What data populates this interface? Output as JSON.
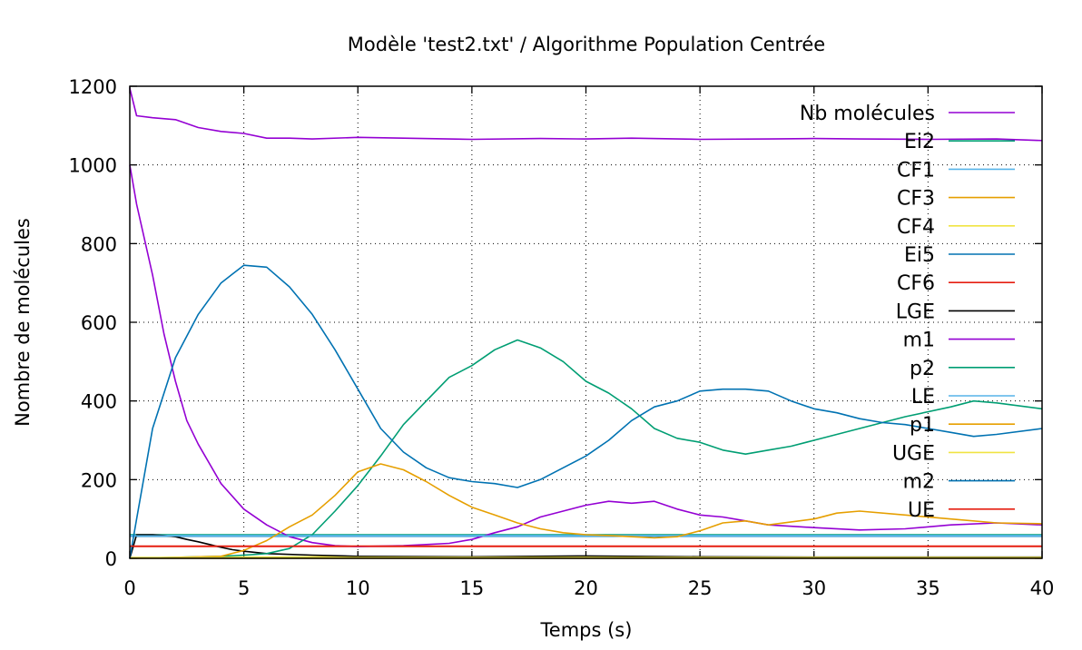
{
  "chart_data": {
    "type": "line",
    "title": "Modèle 'test2.txt' / Algorithme Population Centrée",
    "xlabel": "Temps (s)",
    "ylabel": "Nombre de molécules",
    "xlim": [
      0,
      40
    ],
    "ylim": [
      0,
      1200
    ],
    "xticks": [
      0,
      5,
      10,
      15,
      20,
      25,
      30,
      35,
      40
    ],
    "yticks": [
      0,
      200,
      400,
      600,
      800,
      1000,
      1200
    ],
    "grid": true,
    "legend_position": "top-right",
    "series": [
      {
        "name": "Nb molécules",
        "color": "#9400d3",
        "x": [
          0,
          0.3,
          1,
          2,
          3,
          4,
          5,
          6,
          7,
          8,
          10,
          12,
          15,
          18,
          20,
          22,
          25,
          28,
          30,
          32,
          35,
          38,
          40
        ],
        "y": [
          1195,
          1125,
          1120,
          1115,
          1095,
          1085,
          1080,
          1068,
          1068,
          1066,
          1070,
          1068,
          1065,
          1067,
          1066,
          1068,
          1065,
          1066,
          1067,
          1066,
          1065,
          1066,
          1062
        ]
      },
      {
        "name": "Ei2",
        "color": "#009e73",
        "x": [
          0,
          40
        ],
        "y": [
          60,
          60
        ]
      },
      {
        "name": "CF1",
        "color": "#56b4e9",
        "x": [
          0,
          40
        ],
        "y": [
          58,
          58
        ]
      },
      {
        "name": "CF3",
        "color": "#e69f00",
        "x": [
          0,
          40
        ],
        "y": [
          0,
          0
        ]
      },
      {
        "name": "CF4",
        "color": "#f0e442",
        "x": [
          0,
          4,
          10,
          15,
          20,
          25,
          30,
          35,
          40
        ],
        "y": [
          0,
          3,
          4,
          2,
          2,
          1,
          1,
          1,
          1
        ]
      },
      {
        "name": "Ei5",
        "color": "#0072b2",
        "x": [
          0,
          40
        ],
        "y": [
          56,
          56
        ]
      },
      {
        "name": "CF6",
        "color": "#e51e10",
        "x": [
          0,
          40
        ],
        "y": [
          30,
          30
        ]
      },
      {
        "name": "LGE",
        "color": "#000000",
        "x": [
          0,
          0.3,
          1,
          1.5,
          2,
          2.5,
          3,
          3.5,
          4,
          4.5,
          5,
          6,
          8,
          10,
          15,
          20,
          25,
          30,
          35,
          40
        ],
        "y": [
          0,
          60,
          60,
          58,
          55,
          48,
          42,
          35,
          28,
          22,
          18,
          12,
          8,
          5,
          4,
          6,
          4,
          3,
          3,
          3
        ]
      },
      {
        "name": "m1",
        "color": "#9400d3",
        "x": [
          0,
          0.3,
          1,
          1.5,
          2,
          2.5,
          3,
          4,
          5,
          6,
          7,
          8,
          9,
          10,
          12,
          14,
          15,
          16,
          17,
          18,
          19,
          20,
          21,
          22,
          23,
          24,
          25,
          26,
          27,
          28,
          30,
          32,
          34,
          36,
          38,
          40
        ],
        "y": [
          1000,
          900,
          720,
          570,
          450,
          350,
          290,
          190,
          125,
          85,
          55,
          40,
          32,
          30,
          32,
          38,
          48,
          65,
          80,
          105,
          120,
          135,
          145,
          140,
          145,
          125,
          110,
          105,
          95,
          85,
          78,
          72,
          75,
          85,
          90,
          85
        ]
      },
      {
        "name": "p2",
        "color": "#009e73",
        "x": [
          0,
          4,
          5,
          6,
          7,
          8,
          9,
          10,
          11,
          12,
          13,
          14,
          15,
          16,
          17,
          18,
          19,
          20,
          21,
          22,
          23,
          24,
          25,
          26,
          27,
          28,
          29,
          30,
          32,
          34,
          36,
          37,
          38,
          40
        ],
        "y": [
          0,
          5,
          8,
          12,
          25,
          60,
          120,
          185,
          260,
          340,
          400,
          460,
          490,
          530,
          555,
          535,
          500,
          450,
          420,
          380,
          330,
          305,
          295,
          275,
          265,
          275,
          285,
          300,
          330,
          360,
          385,
          400,
          395,
          380
        ]
      },
      {
        "name": "LE",
        "color": "#56b4e9",
        "x": [
          0,
          40
        ],
        "y": [
          57,
          57
        ]
      },
      {
        "name": "p1",
        "color": "#e69f00",
        "x": [
          0,
          4,
          5,
          6,
          7,
          8,
          9,
          10,
          11,
          12,
          13,
          14,
          15,
          16,
          17,
          18,
          19,
          20,
          21,
          22,
          23,
          24,
          25,
          26,
          27,
          28,
          30,
          31,
          32,
          34,
          36,
          38,
          40
        ],
        "y": [
          0,
          5,
          20,
          45,
          80,
          110,
          160,
          220,
          240,
          225,
          195,
          160,
          130,
          110,
          90,
          75,
          65,
          60,
          58,
          55,
          52,
          55,
          70,
          90,
          95,
          85,
          100,
          115,
          120,
          110,
          100,
          90,
          88
        ]
      },
      {
        "name": "UGE",
        "color": "#f0e442",
        "x": [
          0,
          40
        ],
        "y": [
          2,
          2
        ]
      },
      {
        "name": "m2",
        "color": "#0072b2",
        "x": [
          0,
          0.3,
          1,
          2,
          3,
          4,
          5,
          6,
          7,
          8,
          9,
          10,
          11,
          12,
          13,
          14,
          15,
          16,
          17,
          18,
          19,
          20,
          21,
          22,
          23,
          24,
          25,
          26,
          27,
          28,
          29,
          30,
          31,
          32,
          33,
          34,
          35,
          36,
          37,
          38,
          40
        ],
        "y": [
          0,
          100,
          330,
          510,
          620,
          700,
          745,
          740,
          690,
          620,
          530,
          430,
          330,
          270,
          230,
          205,
          195,
          190,
          180,
          200,
          230,
          260,
          300,
          350,
          385,
          400,
          425,
          430,
          430,
          425,
          400,
          380,
          370,
          355,
          345,
          340,
          330,
          320,
          310,
          315,
          330
        ]
      },
      {
        "name": "UE",
        "color": "#e51e10",
        "x": [
          0,
          40
        ],
        "y": [
          31,
          31
        ]
      }
    ]
  }
}
